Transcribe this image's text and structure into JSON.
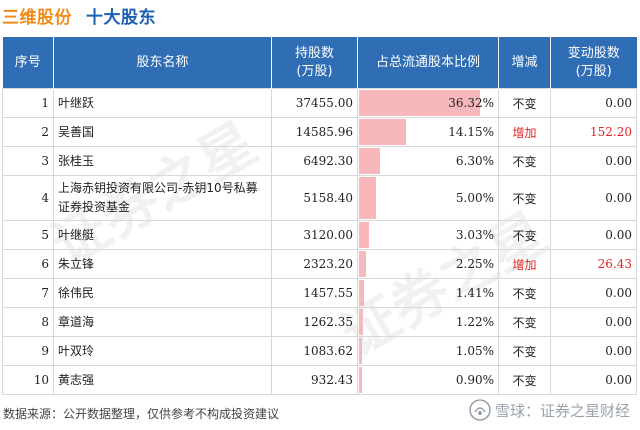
{
  "header": {
    "company": "三维股份",
    "section": "十大股东"
  },
  "columns": [
    "序号",
    "股东名称",
    "持股数\n(万股)",
    "占总流通股本比例",
    "增减",
    "变动股数\n(万股)"
  ],
  "rows": [
    {
      "idx": "1",
      "name": "叶继跃",
      "shares": "37455.00",
      "ratio": "36.32%",
      "ratio_value": 36.32,
      "change": "不变",
      "amount": "0.00",
      "up": false
    },
    {
      "idx": "2",
      "name": "吴善国",
      "shares": "14585.96",
      "ratio": "14.15%",
      "ratio_value": 14.15,
      "change": "增加",
      "amount": "152.20",
      "up": true
    },
    {
      "idx": "3",
      "name": "张桂玉",
      "shares": "6492.30",
      "ratio": "6.30%",
      "ratio_value": 6.3,
      "change": "不变",
      "amount": "0.00",
      "up": false
    },
    {
      "idx": "4",
      "name": "上海赤钥投资有限公司-赤钥10号私募证券投资基金",
      "shares": "5158.40",
      "ratio": "5.00%",
      "ratio_value": 5.0,
      "change": "不变",
      "amount": "0.00",
      "up": false
    },
    {
      "idx": "5",
      "name": "叶继艇",
      "shares": "3120.00",
      "ratio": "3.03%",
      "ratio_value": 3.03,
      "change": "不变",
      "amount": "0.00",
      "up": false
    },
    {
      "idx": "6",
      "name": "朱立锋",
      "shares": "2323.20",
      "ratio": "2.25%",
      "ratio_value": 2.25,
      "change": "增加",
      "amount": "26.43",
      "up": true
    },
    {
      "idx": "7",
      "name": "徐伟民",
      "shares": "1457.55",
      "ratio": "1.41%",
      "ratio_value": 1.41,
      "change": "不变",
      "amount": "0.00",
      "up": false
    },
    {
      "idx": "8",
      "name": "章道海",
      "shares": "1262.35",
      "ratio": "1.22%",
      "ratio_value": 1.22,
      "change": "不变",
      "amount": "0.00",
      "up": false
    },
    {
      "idx": "9",
      "name": "叶双玲",
      "shares": "1083.62",
      "ratio": "1.05%",
      "ratio_value": 1.05,
      "change": "不变",
      "amount": "0.00",
      "up": false
    },
    {
      "idx": "10",
      "name": "黄志强",
      "shares": "932.43",
      "ratio": "0.90%",
      "ratio_value": 0.9,
      "change": "不变",
      "amount": "0.00",
      "up": false
    }
  ],
  "footer": {
    "source": "数据来源：公开数据整理，仅供参考不构成投资建议",
    "brand": "雪球：证券之星财经"
  },
  "colors": {
    "title_orange": "#f08c1a",
    "title_blue": "#1b5fb3",
    "header_bg": "#2f6db5",
    "bar": "#f7b8bc",
    "increase": "#e22424"
  }
}
